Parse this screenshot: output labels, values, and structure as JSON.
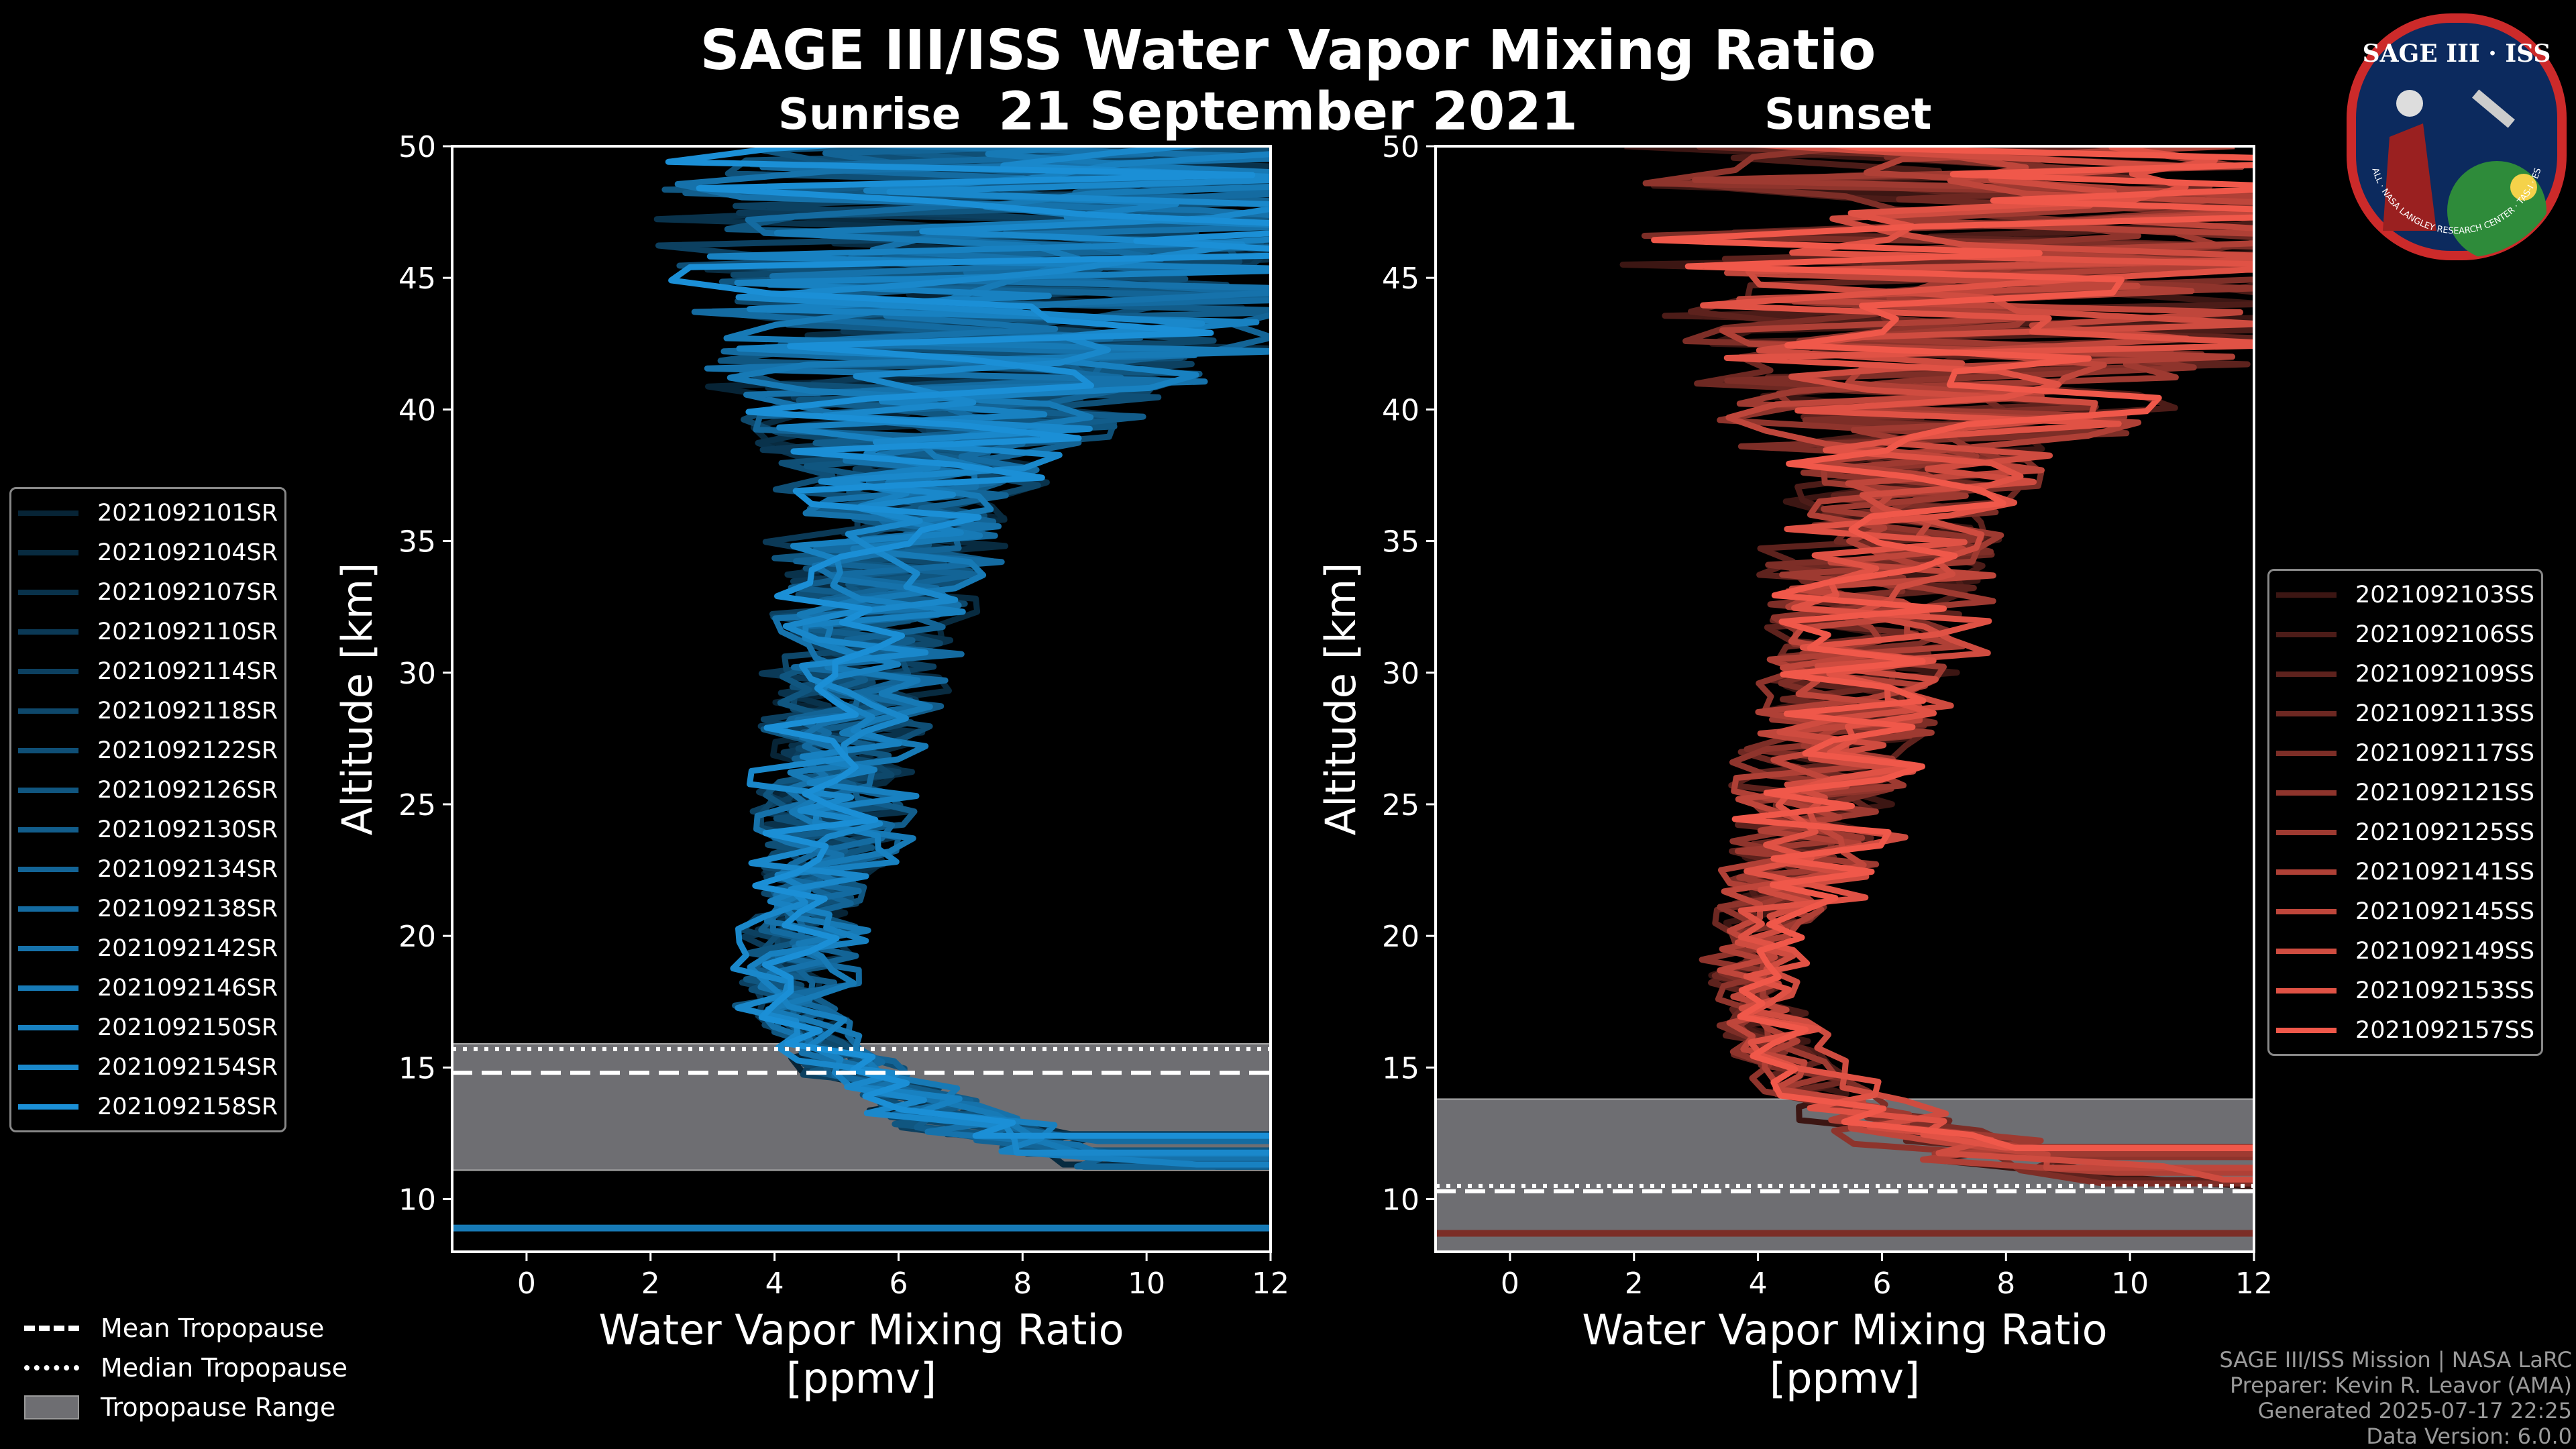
{
  "title": "SAGE III/ISS Water Vapor Mixing Ratio",
  "date": "21 September 2021",
  "logo": {
    "text": "SAGE III · ISS",
    "subtext": "BALL · NASA LANGLEY RESEARCH CENTER · TAS-I · ESA"
  },
  "credits": {
    "line1": "SAGE III/ISS Mission | NASA LaRC",
    "line2": "Preparer: Kevin R. Leavor (AMA)",
    "line3": "Generated 2025-07-17 22:25",
    "line4": "Data Version: 6.0.0"
  },
  "tropopause_legend": {
    "mean": "Mean Tropopause",
    "median": "Median Tropopause",
    "range": "Tropopause Range"
  },
  "colors": {
    "sunrise": "#1b8fd6",
    "sunset": "#f0584a",
    "tropopause_range": "#6e6e72"
  },
  "chart_data": [
    {
      "type": "line",
      "subtitle": "Sunrise",
      "xlabel": "Water Vapor Mixing Ratio\n[ppmv]",
      "xlabel_line1": "Water Vapor Mixing Ratio",
      "xlabel_line2": "[ppmv]",
      "ylabel": "Altitude [km]",
      "xlim": [
        -1.2,
        12
      ],
      "ylim": [
        8,
        50
      ],
      "xticks": [
        0,
        2,
        4,
        6,
        8,
        10,
        12
      ],
      "yticks": [
        10,
        15,
        20,
        25,
        30,
        35,
        40,
        45,
        50
      ],
      "tropopause": {
        "mean": 14.8,
        "median": 15.7,
        "range": [
          11.1,
          15.9
        ]
      },
      "low_line_km": 8.9,
      "series": [
        "2021092101SR",
        "2021092104SR",
        "2021092107SR",
        "2021092110SR",
        "2021092114SR",
        "2021092118SR",
        "2021092122SR",
        "2021092126SR",
        "2021092130SR",
        "2021092134SR",
        "2021092138SR",
        "2021092142SR",
        "2021092146SR",
        "2021092150SR",
        "2021092154SR",
        "2021092158SR"
      ],
      "profile_shape": {
        "altitudes_km": [
          11,
          12,
          13,
          14,
          15,
          16,
          17,
          18,
          20,
          22,
          25,
          28,
          30,
          33,
          36,
          38,
          40,
          43,
          46,
          50
        ],
        "center_ppmv": [
          10.5,
          8.5,
          7.0,
          6.2,
          5.2,
          4.8,
          4.4,
          4.2,
          4.5,
          4.8,
          5.0,
          5.2,
          5.4,
          5.7,
          6.0,
          6.3,
          6.8,
          7.5,
          8.0,
          8.5
        ],
        "spread_ppmv": [
          1.5,
          1.5,
          1.2,
          1.0,
          0.8,
          0.6,
          0.8,
          0.9,
          0.9,
          1.0,
          1.2,
          1.3,
          1.4,
          1.6,
          1.9,
          2.5,
          3.5,
          5.0,
          6.0,
          6.5
        ]
      }
    },
    {
      "type": "line",
      "subtitle": "Sunset",
      "xlabel": "Water Vapor Mixing Ratio\n[ppmv]",
      "xlabel_line1": "Water Vapor Mixing Ratio",
      "xlabel_line2": "[ppmv]",
      "ylabel": "Altitude [km]",
      "xlim": [
        -1.2,
        12
      ],
      "ylim": [
        8,
        50
      ],
      "xticks": [
        0,
        2,
        4,
        6,
        8,
        10,
        12
      ],
      "yticks": [
        10,
        15,
        20,
        25,
        30,
        35,
        40,
        45,
        50
      ],
      "tropopause": {
        "mean": 10.3,
        "median": 10.5,
        "range": [
          8.0,
          13.8
        ]
      },
      "low_line_km": 8.7,
      "series": [
        "2021092103SS",
        "2021092106SS",
        "2021092109SS",
        "2021092113SS",
        "2021092117SS",
        "2021092121SS",
        "2021092125SS",
        "2021092141SS",
        "2021092145SS",
        "2021092149SS",
        "2021092153SS",
        "2021092157SS"
      ],
      "profile_shape": {
        "altitudes_km": [
          10.5,
          11,
          12,
          13,
          14,
          15,
          16,
          17,
          18,
          20,
          22,
          25,
          28,
          30,
          33,
          36,
          38,
          40,
          43,
          46,
          50
        ],
        "center_ppmv": [
          11,
          9.5,
          7.5,
          6.0,
          5.2,
          4.6,
          4.3,
          4.0,
          3.9,
          4.2,
          4.6,
          5.0,
          5.5,
          5.8,
          6.0,
          6.2,
          6.6,
          7.2,
          7.8,
          8.2,
          8.5
        ],
        "spread_ppmv": [
          1.5,
          1.8,
          1.6,
          1.3,
          1.1,
          0.8,
          0.7,
          0.6,
          0.6,
          0.8,
          1.2,
          1.4,
          1.5,
          1.6,
          1.8,
          2.0,
          2.5,
          4.0,
          5.5,
          6.5,
          6.5
        ]
      }
    }
  ]
}
